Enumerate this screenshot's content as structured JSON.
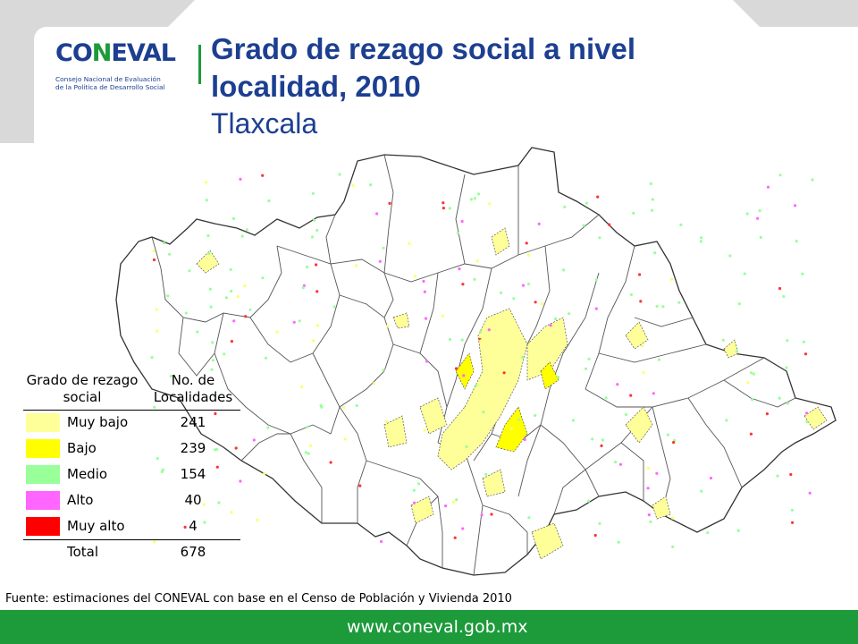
{
  "header": {
    "logo_text": "CONEVAL",
    "logo_subtitle_line1": "Consejo Nacional de Evaluación",
    "logo_subtitle_line2": "de la Política de Desarrollo Social",
    "title": "Grado de rezago social a nivel localidad, 2010",
    "subtitle": "Tlaxcala"
  },
  "legend": {
    "header_col1": "Grado de rezago social",
    "header_col2": "No. de Localidades",
    "rows": [
      {
        "label": "Muy bajo",
        "count": "241",
        "color": "#ffff99"
      },
      {
        "label": "Bajo",
        "count": "239",
        "color": "#ffff00"
      },
      {
        "label": "Medio",
        "count": "154",
        "color": "#99ff99"
      },
      {
        "label": "Alto",
        "count": "40",
        "color": "#ff66ff"
      },
      {
        "label": "Muy alto",
        "count": "4",
        "color": "#ff0000"
      }
    ],
    "total_label": "Total",
    "total_count": "678"
  },
  "source": "Fuente: estimaciones del CONEVAL con base en el Censo de Población y Vivienda 2010",
  "footer": {
    "url": "www.coneval.gob.mx",
    "color": "#1d9a3a"
  },
  "colors": {
    "title": "#1d3f91",
    "accent_green": "#1d9a3a",
    "corner_gray": "#d9d9d9"
  }
}
